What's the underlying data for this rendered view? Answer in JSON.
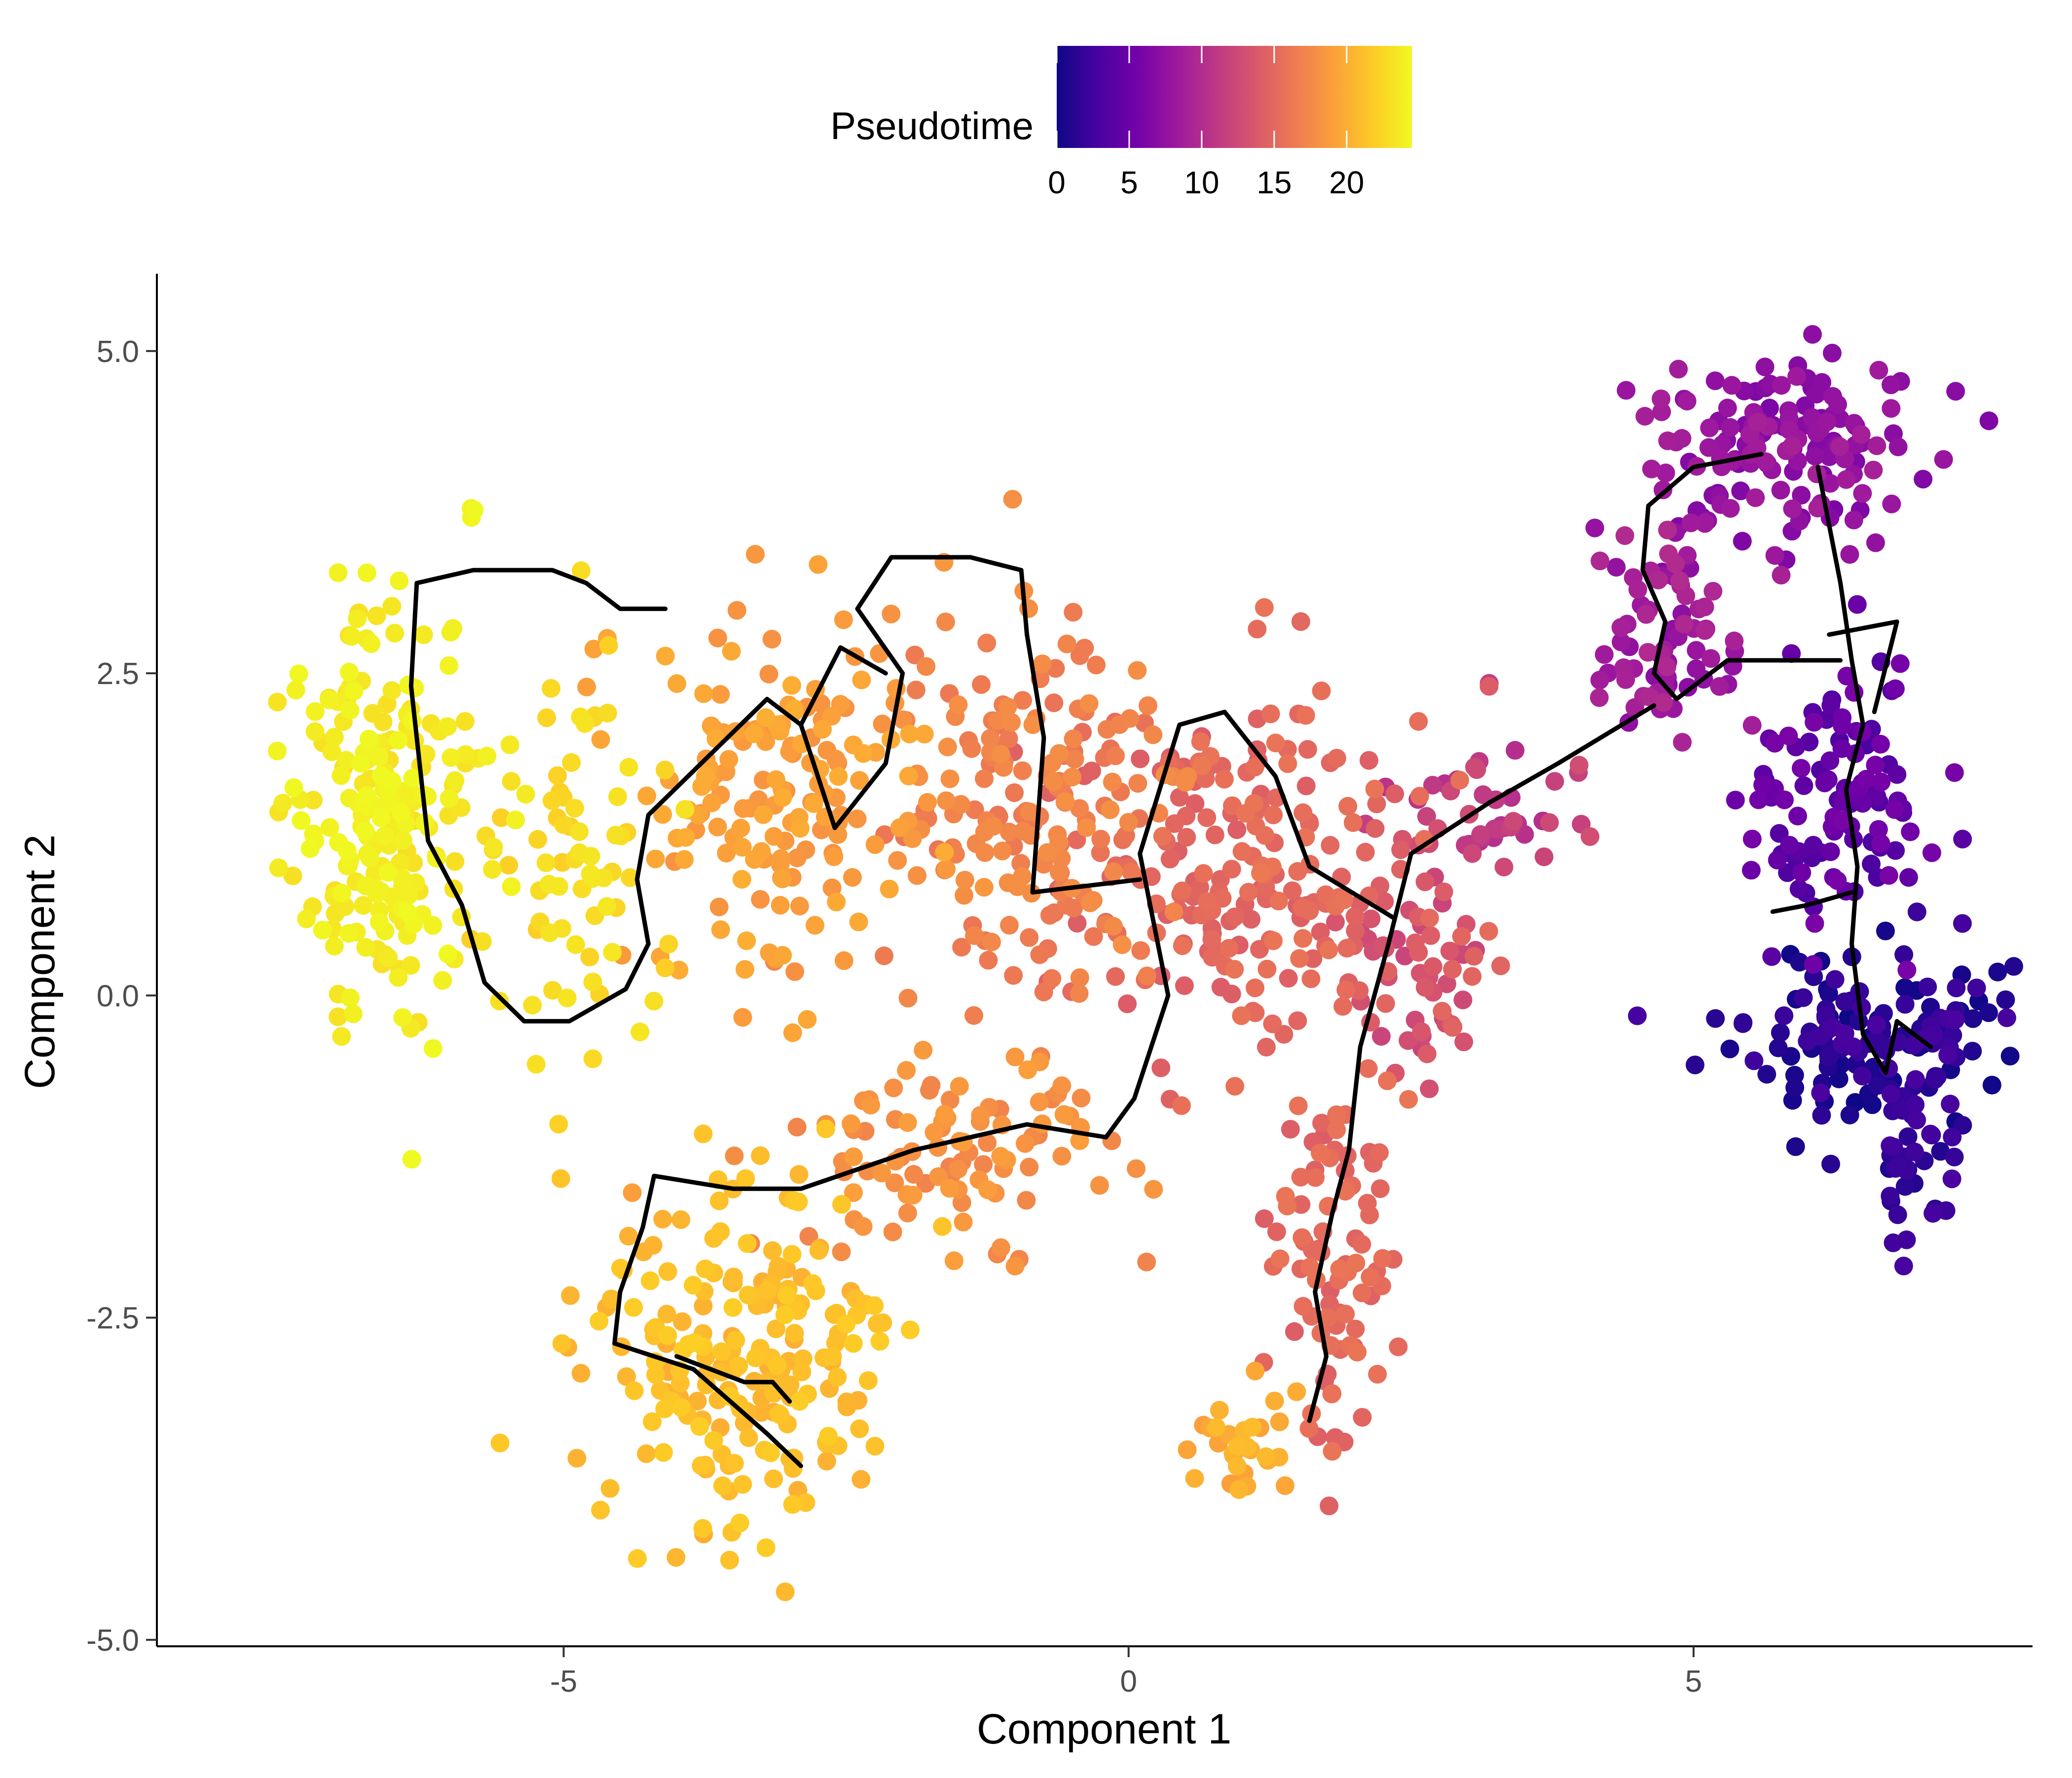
{
  "chart_data": {
    "type": "scatter",
    "title": "",
    "xlabel": "Component 1",
    "ylabel": "Component 2",
    "xlim": [
      -8.6,
      8.0
    ],
    "ylim": [
      -5.05,
      5.6
    ],
    "x_ticks": [
      -5,
      0,
      5
    ],
    "x_tick_labels": [
      "-5",
      "0",
      "5"
    ],
    "y_ticks": [
      -5.0,
      -2.5,
      0.0,
      2.5,
      5.0
    ],
    "y_tick_labels": [
      "-5.0",
      "-2.5",
      "0.0",
      "2.5",
      "5.0"
    ],
    "grid": false,
    "legend": {
      "title": "Pseudotime",
      "position": "top",
      "type": "colorbar",
      "range": [
        0,
        24.5
      ],
      "ticks": [
        0,
        5,
        10,
        15,
        20
      ],
      "tick_labels": [
        "0",
        "5",
        "10",
        "15",
        "20"
      ]
    },
    "colormap": [
      "#0d0887",
      "#46039f",
      "#7201a8",
      "#9c179e",
      "#bd3786",
      "#d8576b",
      "#ed7953",
      "#fb9f3a",
      "#fdca26",
      "#f0f921"
    ],
    "trajectory_color": "#000000",
    "point_groups": [
      {
        "name": "root-branch",
        "pseudotime": [
          0,
          3
        ],
        "center": [
          6.6,
          -0.3
        ],
        "spread": [
          0.8,
          0.45
        ],
        "count": 150
      },
      {
        "name": "root-tail",
        "pseudotime": [
          1,
          3
        ],
        "center": [
          7.0,
          -1.3
        ],
        "spread": [
          0.25,
          0.5
        ],
        "count": 35
      },
      {
        "name": "early-stem",
        "pseudotime": [
          3,
          6
        ],
        "center": [
          6.3,
          1.5
        ],
        "spread": [
          0.55,
          0.7
        ],
        "count": 110
      },
      {
        "name": "upper-lobe",
        "pseudotime": [
          6,
          9
        ],
        "center": [
          5.8,
          4.3
        ],
        "spread": [
          0.8,
          0.5
        ],
        "count": 150
      },
      {
        "name": "upper-left-lobe",
        "pseudotime": [
          7,
          10
        ],
        "center": [
          4.8,
          2.8
        ],
        "spread": [
          0.45,
          0.6
        ],
        "count": 80
      },
      {
        "name": "bridge",
        "pseudotime": [
          10,
          13
        ],
        "center": [
          3.3,
          1.4
        ],
        "spread": [
          0.6,
          0.35
        ],
        "count": 45
      },
      {
        "name": "neck",
        "pseudotime": [
          12,
          15
        ],
        "center": [
          2.6,
          0.2
        ],
        "spread": [
          0.45,
          0.6
        ],
        "count": 60
      },
      {
        "name": "lower-arm",
        "pseudotime": [
          14,
          16
        ],
        "center": [
          1.8,
          -2.2
        ],
        "spread": [
          0.35,
          1.0
        ],
        "count": 90
      },
      {
        "name": "lower-arm-tip",
        "pseudotime": [
          19,
          21
        ],
        "center": [
          1.0,
          -3.5
        ],
        "spread": [
          0.35,
          0.3
        ],
        "count": 30
      },
      {
        "name": "center-right",
        "pseudotime": [
          14,
          16
        ],
        "center": [
          1.0,
          1.0
        ],
        "spread": [
          1.0,
          1.0
        ],
        "count": 210
      },
      {
        "name": "center",
        "pseudotime": [
          16,
          18
        ],
        "center": [
          -0.8,
          1.5
        ],
        "spread": [
          0.9,
          1.0
        ],
        "count": 180
      },
      {
        "name": "center-lower",
        "pseudotime": [
          17,
          19
        ],
        "center": [
          -1.6,
          -1.2
        ],
        "spread": [
          0.9,
          0.5
        ],
        "count": 100
      },
      {
        "name": "center-left",
        "pseudotime": [
          18,
          20
        ],
        "center": [
          -2.9,
          1.5
        ],
        "spread": [
          0.9,
          1.0
        ],
        "count": 170
      },
      {
        "name": "lower-left",
        "pseudotime": [
          20,
          22
        ],
        "center": [
          -3.4,
          -2.8
        ],
        "spread": [
          0.9,
          0.9
        ],
        "count": 220
      },
      {
        "name": "left",
        "pseudotime": [
          22,
          23.5
        ],
        "center": [
          -4.8,
          1.2
        ],
        "spread": [
          0.45,
          1.0
        ],
        "count": 70
      },
      {
        "name": "far-left",
        "pseudotime": [
          23,
          24.5
        ],
        "center": [
          -6.6,
          1.5
        ],
        "spread": [
          0.55,
          1.1
        ],
        "count": 230
      }
    ],
    "trajectory_segments": [
      [
        [
          6.1,
          4.1
        ],
        [
          6.3,
          3.2
        ],
        [
          6.4,
          2.6
        ],
        [
          6.5,
          2.1
        ],
        [
          6.35,
          1.6
        ],
        [
          6.45,
          1.0
        ],
        [
          6.4,
          0.4
        ],
        [
          6.5,
          -0.3
        ],
        [
          6.7,
          -0.6
        ],
        [
          6.8,
          -0.2
        ],
        [
          7.1,
          -0.4
        ]
      ],
      [
        [
          6.4,
          0.8
        ],
        [
          6.0,
          0.7
        ],
        [
          5.7,
          0.65
        ]
      ],
      [
        [
          6.6,
          2.2
        ],
        [
          6.8,
          2.9
        ],
        [
          6.2,
          2.8
        ]
      ],
      [
        [
          6.3,
          2.6
        ],
        [
          5.3,
          2.6
        ],
        [
          4.85,
          2.3
        ],
        [
          4.65,
          2.5
        ],
        [
          4.75,
          2.9
        ],
        [
          4.55,
          3.3
        ],
        [
          4.6,
          3.8
        ],
        [
          5.0,
          4.1
        ],
        [
          5.6,
          4.2
        ]
      ],
      [
        [
          4.65,
          2.25
        ],
        [
          3.8,
          1.8
        ],
        [
          3.2,
          1.5
        ],
        [
          2.5,
          1.1
        ],
        [
          2.3,
          0.4
        ],
        [
          2.05,
          -0.4
        ],
        [
          1.95,
          -1.2
        ],
        [
          1.8,
          -1.7
        ],
        [
          1.65,
          -2.3
        ],
        [
          1.75,
          -2.8
        ],
        [
          1.6,
          -3.3
        ]
      ],
      [
        [
          2.35,
          0.6
        ],
        [
          1.6,
          1.0
        ],
        [
          1.3,
          1.7
        ],
        [
          0.85,
          2.2
        ],
        [
          0.45,
          2.1
        ],
        [
          0.1,
          1.1
        ],
        [
          0.35,
          0.0
        ],
        [
          0.05,
          -0.8
        ],
        [
          -0.2,
          -1.1
        ],
        [
          -0.9,
          -1.0
        ],
        [
          -1.4,
          -1.1
        ],
        [
          -1.9,
          -1.2
        ],
        [
          -2.9,
          -1.5
        ],
        [
          -3.5,
          -1.5
        ],
        [
          -4.2,
          -1.4
        ],
        [
          -4.3,
          -1.8
        ],
        [
          -4.5,
          -2.3
        ],
        [
          -4.55,
          -2.7
        ],
        [
          -3.85,
          -2.9
        ],
        [
          -3.2,
          -3.4
        ],
        [
          -2.9,
          -3.65
        ]
      ],
      [
        [
          0.1,
          0.9
        ],
        [
          -0.85,
          0.8
        ],
        [
          -0.75,
          2.0
        ],
        [
          -0.9,
          2.8
        ],
        [
          -0.95,
          3.3
        ],
        [
          -1.4,
          3.4
        ],
        [
          -2.1,
          3.4
        ],
        [
          -2.4,
          3.0
        ],
        [
          -2.0,
          2.5
        ],
        [
          -2.15,
          1.8
        ],
        [
          -2.6,
          1.3
        ],
        [
          -2.9,
          2.1
        ],
        [
          -3.2,
          2.3
        ],
        [
          -3.55,
          2.0
        ],
        [
          -3.9,
          1.7
        ],
        [
          -4.25,
          1.4
        ],
        [
          -4.35,
          0.9
        ],
        [
          -4.25,
          0.4
        ],
        [
          -4.45,
          0.05
        ],
        [
          -4.95,
          -0.2
        ],
        [
          -5.35,
          -0.2
        ],
        [
          -5.7,
          0.1
        ],
        [
          -5.9,
          0.7
        ],
        [
          -6.2,
          1.2
        ],
        [
          -6.35,
          2.4
        ],
        [
          -6.3,
          3.2
        ],
        [
          -5.8,
          3.3
        ],
        [
          -5.1,
          3.3
        ],
        [
          -4.8,
          3.2
        ],
        [
          -4.5,
          3.0
        ],
        [
          -4.1,
          3.0
        ]
      ],
      [
        [
          -4.0,
          -2.8
        ],
        [
          -3.4,
          -3.0
        ],
        [
          -3.15,
          -3.0
        ],
        [
          -3.0,
          -3.15
        ]
      ],
      [
        [
          -2.9,
          2.1
        ],
        [
          -2.55,
          2.7
        ],
        [
          -2.15,
          2.5
        ]
      ]
    ]
  }
}
